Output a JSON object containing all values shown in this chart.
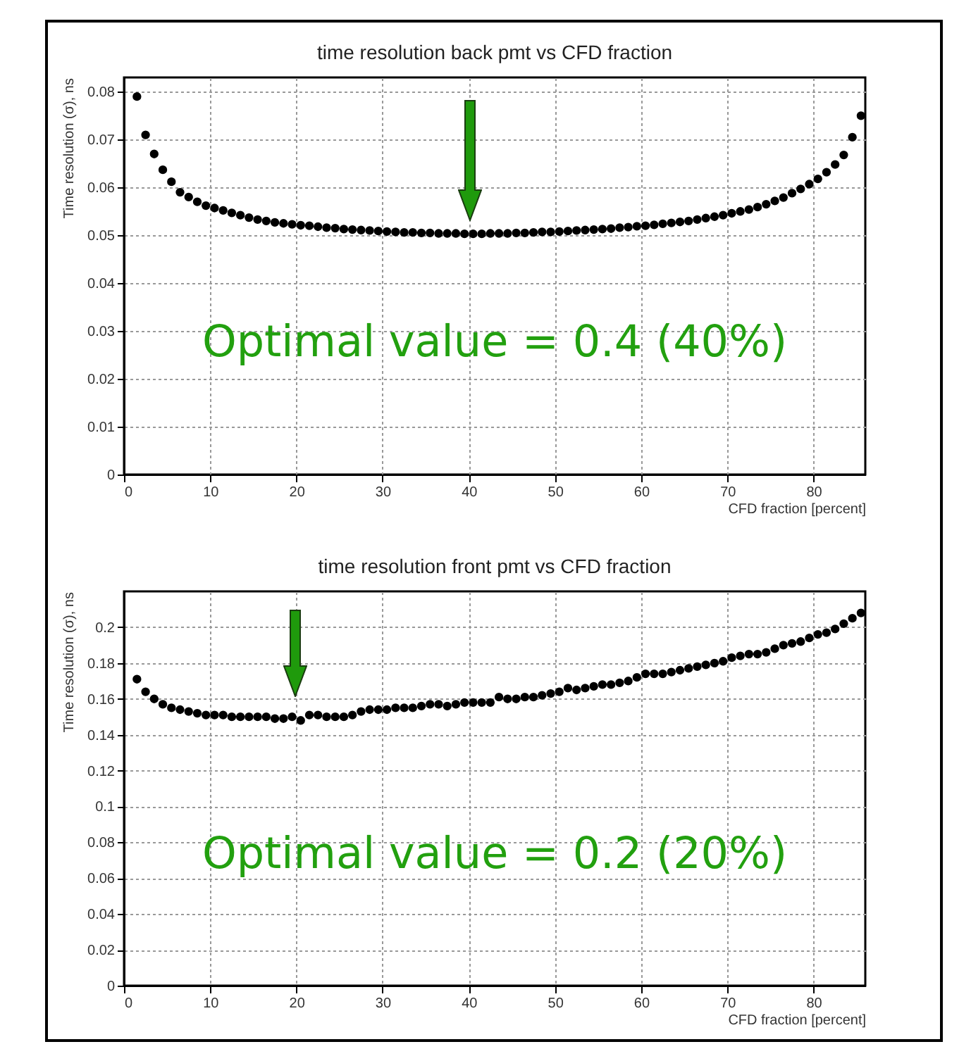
{
  "chart_data": [
    {
      "type": "scatter",
      "title": "time resolution back pmt vs CFD fraction",
      "xlabel": "CFD fraction [percent]",
      "ylabel": "Time resolution (σ), ns",
      "x": [
        1.5,
        2.5,
        3.5,
        4.5,
        5.5,
        6.5,
        7.5,
        8.5,
        9.5,
        10.5,
        11.5,
        12.5,
        13.5,
        14.5,
        15.5,
        16.5,
        17.5,
        18.5,
        19.5,
        20.5,
        21.5,
        22.5,
        23.5,
        24.5,
        25.5,
        26.5,
        27.5,
        28.5,
        29.5,
        30.5,
        31.5,
        32.5,
        33.5,
        34.5,
        35.5,
        36.5,
        37.5,
        38.5,
        39.5,
        40.5,
        41.5,
        42.5,
        43.5,
        44.5,
        45.5,
        46.5,
        47.5,
        48.5,
        49.5,
        50.5,
        51.5,
        52.5,
        53.5,
        54.5,
        55.5,
        56.5,
        57.5,
        58.5,
        59.5,
        60.5,
        61.5,
        62.5,
        63.5,
        64.5,
        65.5,
        66.5,
        67.5,
        68.5,
        69.5,
        70.5,
        71.5,
        72.5,
        73.5,
        74.5,
        75.5,
        76.5,
        77.5,
        78.5,
        79.5,
        80.5,
        81.5,
        82.5,
        83.5,
        84.5,
        85.5
      ],
      "series": [
        {
          "color": "#000000",
          "values": [
            0.079,
            0.071,
            0.067,
            0.0637,
            0.0612,
            0.059,
            0.058,
            0.057,
            0.0562,
            0.0557,
            0.0552,
            0.0547,
            0.0542,
            0.0537,
            0.0533,
            0.053,
            0.0527,
            0.0525,
            0.0523,
            0.0521,
            0.052,
            0.0518,
            0.0516,
            0.0515,
            0.0513,
            0.0512,
            0.0511,
            0.051,
            0.0509,
            0.0508,
            0.0507,
            0.0506,
            0.0506,
            0.0505,
            0.0505,
            0.0504,
            0.0504,
            0.0504,
            0.0503,
            0.0503,
            0.0503,
            0.0504,
            0.0504,
            0.0504,
            0.0505,
            0.0505,
            0.0506,
            0.0507,
            0.0507,
            0.0508,
            0.0509,
            0.051,
            0.0511,
            0.0512,
            0.0513,
            0.0514,
            0.0516,
            0.0517,
            0.0519,
            0.052,
            0.0522,
            0.0524,
            0.0526,
            0.0528,
            0.053,
            0.0533,
            0.0536,
            0.0539,
            0.0542,
            0.0546,
            0.055,
            0.0554,
            0.0559,
            0.0565,
            0.0572,
            0.0579,
            0.0588,
            0.0597,
            0.0607,
            0.0618,
            0.0632,
            0.0648,
            0.0668,
            0.0705,
            0.075
          ]
        }
      ],
      "xlim": [
        0,
        86
      ],
      "ylim": [
        0,
        0.083
      ],
      "xticks": [
        0,
        10,
        20,
        30,
        40,
        50,
        60,
        70,
        80
      ],
      "yticks": [
        0,
        0.01,
        0.02,
        0.03,
        0.04,
        0.05,
        0.06,
        0.07,
        0.08
      ],
      "grid": true,
      "marker": "circle",
      "annotations": [
        "Optimal value = 0.4 (40%)"
      ]
    },
    {
      "type": "scatter",
      "title": "time resolution front pmt vs CFD fraction",
      "xlabel": "CFD fraction [percent]",
      "ylabel": "Time resolution (σ), ns",
      "x": [
        1.5,
        2.5,
        3.5,
        4.5,
        5.5,
        6.5,
        7.5,
        8.5,
        9.5,
        10.5,
        11.5,
        12.5,
        13.5,
        14.5,
        15.5,
        16.5,
        17.5,
        18.5,
        19.5,
        20.5,
        21.5,
        22.5,
        23.5,
        24.5,
        25.5,
        26.5,
        27.5,
        28.5,
        29.5,
        30.5,
        31.5,
        32.5,
        33.5,
        34.5,
        35.5,
        36.5,
        37.5,
        38.5,
        39.5,
        40.5,
        41.5,
        42.5,
        43.5,
        44.5,
        45.5,
        46.5,
        47.5,
        48.5,
        49.5,
        50.5,
        51.5,
        52.5,
        53.5,
        54.5,
        55.5,
        56.5,
        57.5,
        58.5,
        59.5,
        60.5,
        61.5,
        62.5,
        63.5,
        64.5,
        65.5,
        66.5,
        67.5,
        68.5,
        69.5,
        70.5,
        71.5,
        72.5,
        73.5,
        74.5,
        75.5,
        76.5,
        77.5,
        78.5,
        79.5,
        80.5,
        81.5,
        82.5,
        83.5,
        84.5,
        85.5
      ],
      "series": [
        {
          "color": "#000000",
          "values": [
            0.171,
            0.164,
            0.16,
            0.157,
            0.155,
            0.154,
            0.153,
            0.152,
            0.151,
            0.151,
            0.151,
            0.15,
            0.15,
            0.15,
            0.15,
            0.15,
            0.149,
            0.149,
            0.15,
            0.148,
            0.151,
            0.151,
            0.15,
            0.15,
            0.15,
            0.151,
            0.153,
            0.154,
            0.154,
            0.154,
            0.155,
            0.155,
            0.155,
            0.156,
            0.157,
            0.157,
            0.156,
            0.157,
            0.158,
            0.158,
            0.158,
            0.158,
            0.161,
            0.16,
            0.16,
            0.161,
            0.161,
            0.162,
            0.163,
            0.164,
            0.166,
            0.165,
            0.166,
            0.167,
            0.168,
            0.168,
            0.169,
            0.17,
            0.172,
            0.174,
            0.174,
            0.174,
            0.175,
            0.176,
            0.177,
            0.178,
            0.179,
            0.18,
            0.181,
            0.183,
            0.184,
            0.185,
            0.185,
            0.186,
            0.188,
            0.19,
            0.191,
            0.192,
            0.194,
            0.196,
            0.197,
            0.199,
            0.202,
            0.205,
            0.208
          ]
        }
      ],
      "xlim": [
        0,
        86
      ],
      "ylim": [
        0,
        0.22
      ],
      "xticks": [
        0,
        10,
        20,
        30,
        40,
        50,
        60,
        70,
        80
      ],
      "yticks": [
        0,
        0.02,
        0.04,
        0.06,
        0.08,
        0.1,
        0.12,
        0.14,
        0.16,
        0.18,
        0.2
      ],
      "grid": true,
      "marker": "circle",
      "annotations": [
        "Optimal value = 0.2 (20%)"
      ]
    }
  ]
}
